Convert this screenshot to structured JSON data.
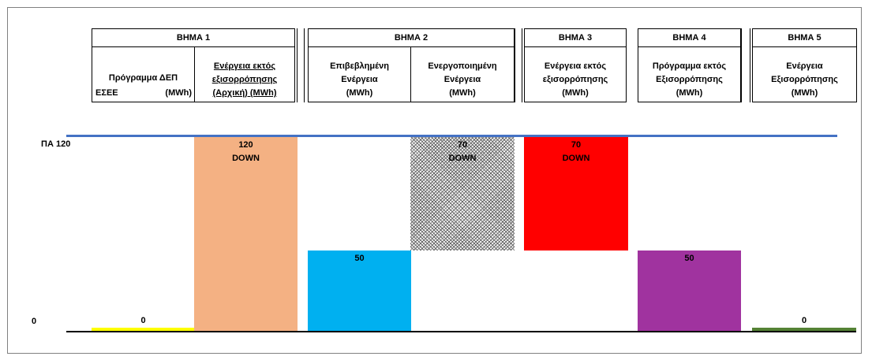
{
  "header": {
    "steps": [
      {
        "label": "ΒΗΜΑ 1"
      },
      {
        "label": "ΒΗΜΑ 2"
      },
      {
        "label": "ΒΗΜΑ 3"
      },
      {
        "label": "ΒΗΜΑ 4"
      },
      {
        "label": "ΒΗΜΑ 5"
      }
    ],
    "columns": [
      {
        "title": "Πρόγραμμα ΔΕΠ",
        "abbr": "ΕΣΕΕ",
        "unit": "(MWh)"
      },
      {
        "title": "Ενέργεια εκτός\nεξισορρόπησης\n(Αρχική) (MWh)"
      },
      {
        "title": "Επιβεβλημένη\nΕνέργεια\n(MWh)"
      },
      {
        "title": "Ενεργοποιημένη\nΕνέργεια\n(MWh)"
      },
      {
        "title": "Ενέργεια εκτός\nεξισορρόπησης\n(MWh)"
      },
      {
        "title": "Πρόγραμμα εκτός\nΕξισορρόπησης\n(MWh)"
      },
      {
        "title": "Ενέργεια\nΕξισορρόπησης\n(MWh)"
      }
    ]
  },
  "chart_data": {
    "type": "bar",
    "title": "",
    "xlabel": "",
    "ylabel": "",
    "ylim": [
      0,
      120
    ],
    "y_reference": {
      "label": "ΠΑ",
      "value": 120,
      "color": "#4472c4"
    },
    "y_tick_labels": [
      "0"
    ],
    "categories": [
      "Πρόγραμμα ΔΕΠ ΕΣΕΕ (MWh)",
      "Ενέργεια εκτός εξισορρόπησης (Αρχική) (MWh)",
      "Επιβεβλημένη Ενέργεια (MWh)",
      "Ενεργοποιημένη Ενέργεια (MWh)",
      "Ενέργεια εκτός εξισορρόπησης (MWh)",
      "Πρόγραμμα εκτός Εξισορρόπησης (MWh)",
      "Ενέργεια Εξισορρόπησης (MWh)"
    ],
    "bars": [
      {
        "base": 0,
        "top": 0,
        "label": "0",
        "color": "#ffff00",
        "pattern": "solid"
      },
      {
        "base": 0,
        "top": 120,
        "label": "120\nDOWN",
        "color": "#f4b183",
        "pattern": "solid"
      },
      {
        "base": 0,
        "top": 50,
        "label": "50",
        "color": "#00b0f0",
        "pattern": "solid"
      },
      {
        "base": 50,
        "top": 120,
        "label": "70\nDOWN",
        "color": "#7f7f7f",
        "pattern": "hatched"
      },
      {
        "base": 50,
        "top": 120,
        "label": "70\nDOWN",
        "color": "#ff0000",
        "pattern": "solid"
      },
      {
        "base": 0,
        "top": 50,
        "label": "50",
        "color": "#a0339f",
        "pattern": "solid"
      },
      {
        "base": 0,
        "top": 0,
        "label": "0",
        "color": "#548235",
        "pattern": "solid"
      }
    ]
  }
}
